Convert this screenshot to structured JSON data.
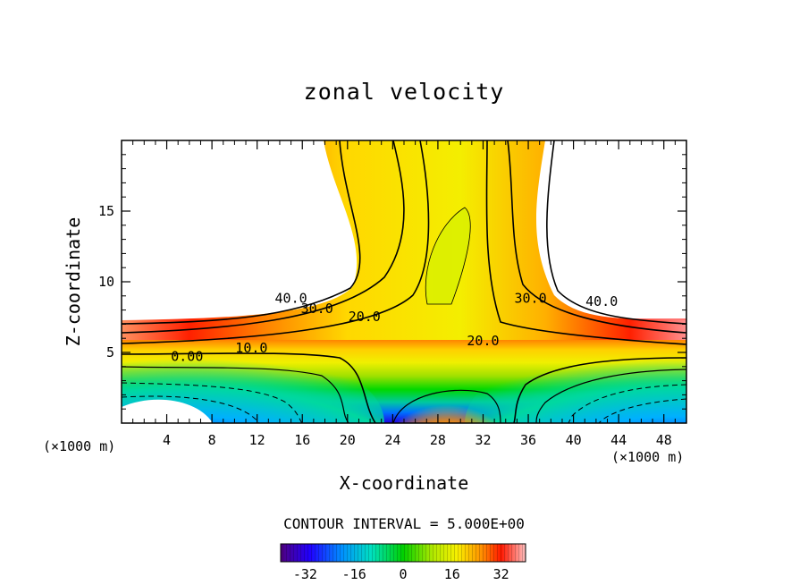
{
  "chart_data": {
    "type": "contour",
    "title": "zonal velocity",
    "xlabel": "X-coordinate",
    "ylabel": "Z-coordinate",
    "x_unit": "(×1000 m)",
    "xlim": [
      0,
      50
    ],
    "ylim": [
      0,
      20
    ],
    "xticks": [
      4,
      8,
      12,
      16,
      20,
      24,
      28,
      32,
      36,
      40,
      44,
      48
    ],
    "yticks": [
      5,
      10,
      15
    ],
    "contour_labels": [
      {
        "text": "40.0",
        "x": 15.0,
        "z": 8.5
      },
      {
        "text": "30.0",
        "x": 17.3,
        "z": 7.8
      },
      {
        "text": "20.0",
        "x": 21.5,
        "z": 7.2
      },
      {
        "text": "10.0",
        "x": 11.5,
        "z": 5.0
      },
      {
        "text": "0.00",
        "x": 5.8,
        "z": 4.4
      },
      {
        "text": "20.0",
        "x": 32.0,
        "z": 5.5
      },
      {
        "text": "30.0",
        "x": 36.2,
        "z": 8.5
      },
      {
        "text": "40.0",
        "x": 42.5,
        "z": 8.3
      }
    ],
    "contour_interval_text": "CONTOUR INTERVAL = 5.000E+00",
    "colorbar": {
      "range": [
        -40,
        40
      ],
      "ticks": [
        -32,
        -16,
        0,
        16,
        32
      ]
    }
  },
  "colors": {
    "negative_min": "#5a0080",
    "zero": "#00d000",
    "mid": "#f8f000",
    "high": "#ff2000",
    "max": "#ffb0b0"
  }
}
